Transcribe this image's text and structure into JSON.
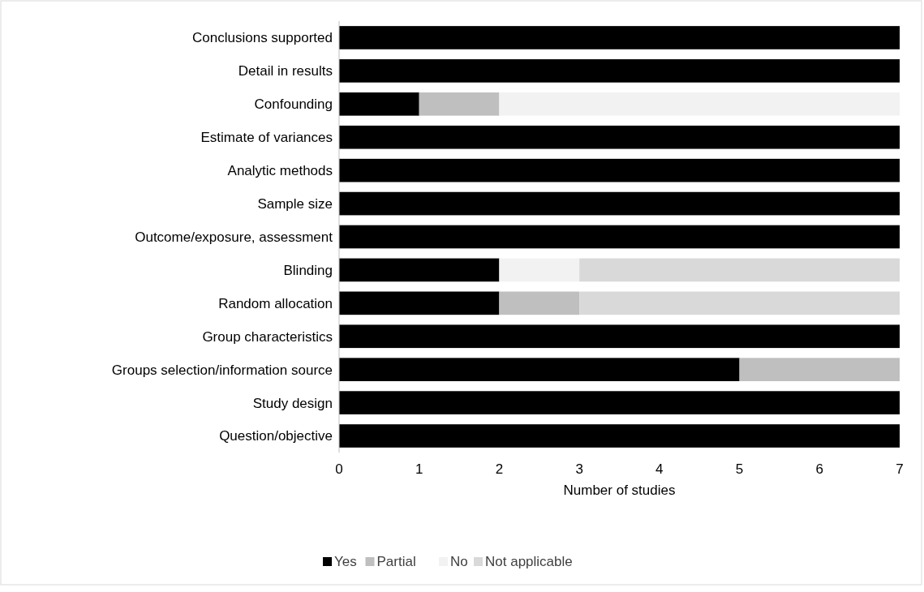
{
  "chart_data": {
    "type": "bar",
    "orientation": "horizontal",
    "stacked": true,
    "xlabel": "Number of studies",
    "categories": [
      "Conclusions supported",
      "Detail in results",
      "Confounding",
      "Estimate of variances",
      "Analytic methods",
      "Sample size",
      "Outcome/exposure, assessment",
      "Blinding",
      "Random allocation",
      "Group characteristics",
      "Groups selection/information source",
      "Study design",
      "Question/objective"
    ],
    "series": [
      {
        "name": "Yes",
        "color": "#000000",
        "values": [
          7,
          7,
          1,
          7,
          7,
          7,
          7,
          2,
          2,
          7,
          5,
          7,
          7
        ]
      },
      {
        "name": "Partial",
        "color": "#bfbfbf",
        "values": [
          0,
          0,
          1,
          0,
          0,
          0,
          0,
          0,
          1,
          0,
          2,
          0,
          0
        ]
      },
      {
        "name": "No",
        "color": "#f2f2f2",
        "values": [
          0,
          0,
          5,
          0,
          0,
          0,
          0,
          1,
          0,
          0,
          0,
          0,
          0
        ]
      },
      {
        "name": "Not applicable",
        "color": "#d9d9d9",
        "values": [
          0,
          0,
          0,
          0,
          0,
          0,
          0,
          4,
          4,
          0,
          0,
          0,
          0
        ]
      }
    ],
    "xlim": [
      0,
      7
    ],
    "xticks": [
      0,
      1,
      2,
      3,
      4,
      5,
      6,
      7
    ],
    "grid": false,
    "legend": "bottom"
  }
}
